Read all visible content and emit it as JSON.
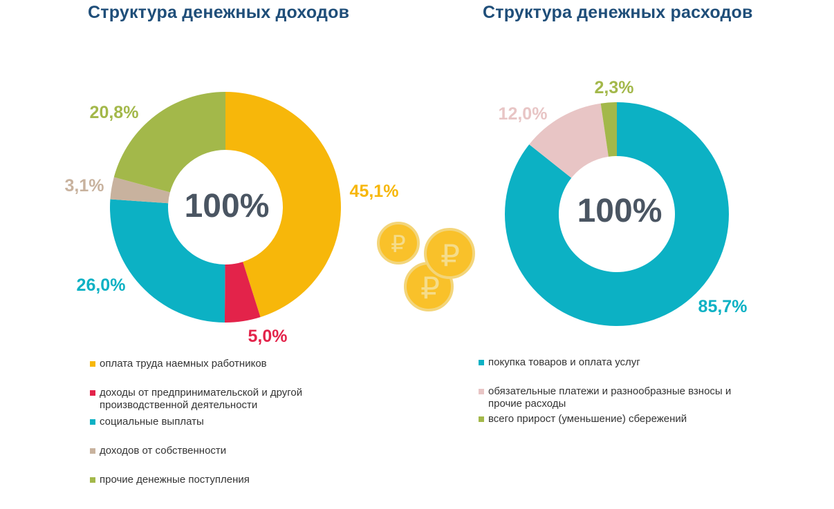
{
  "income": {
    "title": "Структура денежных доходов",
    "center_label": "100%"
  },
  "expense": {
    "title": "Структура денежных расходов",
    "center_label": "100%"
  },
  "coins_icon": "ruble-coins-icon",
  "chart_data": [
    {
      "type": "pie",
      "title": "Структура денежных доходов",
      "donut": true,
      "categories": [
        "оплата труда наемных работников",
        "доходы от предпринимательской и другой производственной деятельности",
        "социальные выплаты",
        "доходов от собственности",
        "прочие денежные поступления"
      ],
      "values": [
        45.1,
        5.0,
        26.0,
        3.1,
        20.8
      ],
      "labels": [
        "45,1%",
        "5,0%",
        "26,0%",
        "3,1%",
        "20,8%"
      ],
      "colors": [
        "#f7b70a",
        "#e3234a",
        "#0cb1c4",
        "#c8b29e",
        "#a3b84a"
      ],
      "legend": "bottom"
    },
    {
      "type": "pie",
      "title": "Структура денежных расходов",
      "donut": true,
      "categories": [
        "покупка товаров и оплата услуг",
        "обязательные платежи и разнообразные взносы и прочие расходы",
        "всего прирост (уменьшение) сбережений"
      ],
      "values": [
        85.7,
        12.0,
        2.3
      ],
      "labels": [
        "85,7%",
        "12,0%",
        "2,3%"
      ],
      "colors": [
        "#0cb1c4",
        "#e8c5c5",
        "#a3b84a"
      ],
      "legend": "bottom"
    }
  ],
  "legend_income": [
    {
      "label": "оплата труда наемных работников",
      "color": "#f7b70a"
    },
    {
      "label": "доходы от предпринимательской и другой производственной деятельности",
      "color": "#e3234a"
    },
    {
      "label": "социальные выплаты",
      "color": "#0cb1c4"
    },
    {
      "label": "доходов от собственности",
      "color": "#c8b29e"
    },
    {
      "label": "прочие денежные поступления",
      "color": "#a3b84a"
    }
  ],
  "legend_expense": [
    {
      "label": "покупка товаров и оплата услуг",
      "color": "#0cb1c4"
    },
    {
      "label": "обязательные платежи и разнообразные взносы и прочие расходы",
      "color": "#e8c5c5"
    },
    {
      "label": "всего прирост (уменьшение) сбережений",
      "color": "#a3b84a"
    }
  ]
}
